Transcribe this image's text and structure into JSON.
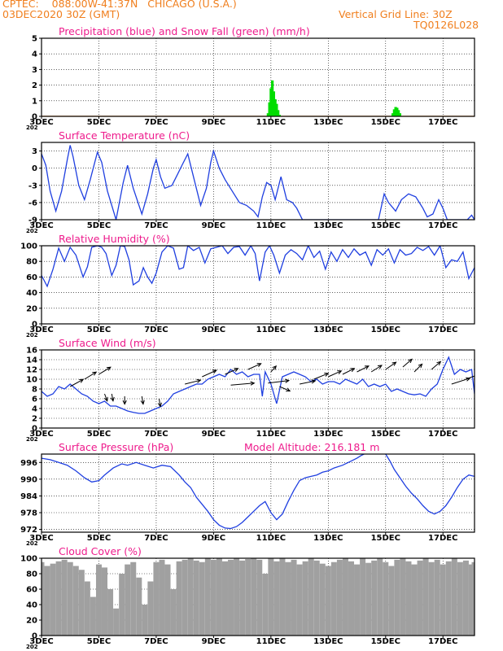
{
  "header": {
    "line1": "CPTEC:    088:00W-41:37N   CHICAGO (U.S.A.)",
    "line2": "03DEC2020 30Z (GMT)",
    "grid_line": "Vertical Grid Line: 30Z",
    "code": "TQ0126L028"
  },
  "colors": {
    "header": "#f07f1e",
    "panel_title": "#ee1b8c",
    "line": "#1f3fe0",
    "snow": "#00dd00",
    "cloud": "#a0a0a0",
    "precip_zero": "#f07f1e"
  },
  "x_axis": {
    "tick_labels": [
      "3DEC",
      "5DEC",
      "7DEC",
      "9DEC",
      "11DEC",
      "13DEC",
      "15DEC",
      "17DEC"
    ],
    "tick_days": [
      3,
      5,
      7,
      9,
      11,
      13,
      15,
      17
    ],
    "start_day": 3,
    "end_day": 18.1,
    "year_fragment": "202"
  },
  "chart_data": [
    {
      "type": "bar",
      "title": "Precipitation (blue) and Snow Fall (green) (mm/h)",
      "ylim": [
        0,
        5
      ],
      "yticks": [
        "0",
        "1",
        "2",
        "3",
        "4",
        "5"
      ],
      "series": [
        {
          "name": "Precipitation",
          "x": [
            3,
            18.1
          ],
          "values": [
            0,
            0
          ]
        },
        {
          "name": "Snow Fall",
          "x": [
            10.9,
            10.95,
            11.0,
            11.05,
            11.1,
            11.15,
            11.2,
            11.25,
            11.3,
            15.25,
            15.3,
            15.35,
            15.4,
            15.45,
            15.5
          ],
          "values": [
            0.2,
            0.9,
            1.8,
            2.3,
            1.6,
            1.1,
            0.8,
            0.4,
            0.1,
            0.2,
            0.45,
            0.6,
            0.55,
            0.4,
            0.2
          ]
        }
      ]
    },
    {
      "type": "line",
      "title": "Surface Temperature (nC)",
      "ylim": [
        -9,
        4.5
      ],
      "yticks": [
        "3",
        "0",
        "-3",
        "-6",
        "-9"
      ],
      "x": [
        3.0,
        3.15,
        3.3,
        3.5,
        3.7,
        3.9,
        4.0,
        4.1,
        4.3,
        4.5,
        4.7,
        4.95,
        5.1,
        5.3,
        5.6,
        5.85,
        6.0,
        6.2,
        6.5,
        6.7,
        6.9,
        7.0,
        7.15,
        7.3,
        7.55,
        7.75,
        7.9,
        8.1,
        8.3,
        8.55,
        8.75,
        8.9,
        9.0,
        9.2,
        9.4,
        9.65,
        9.9,
        10.15,
        10.4,
        10.55,
        10.7,
        10.85,
        11.0,
        11.15,
        11.35,
        11.55,
        11.75,
        11.9,
        12.1,
        14.75,
        14.95,
        15.1,
        15.35,
        15.55,
        15.8,
        16.05,
        16.3,
        16.45,
        16.65,
        16.85,
        17.0,
        17.15,
        17.85,
        18.0,
        18.1
      ],
      "values": [
        2.5,
        0.5,
        -4.0,
        -7.5,
        -4.0,
        1.5,
        4.0,
        2.0,
        -3.0,
        -5.5,
        -2.0,
        2.8,
        1.0,
        -4.0,
        -9.0,
        -2.5,
        0.5,
        -3.5,
        -8.0,
        -4.5,
        0.0,
        1.5,
        -1.5,
        -3.5,
        -3.0,
        -1.0,
        0.5,
        2.5,
        -1.5,
        -6.5,
        -3.5,
        1.0,
        3.0,
        0.0,
        -2.0,
        -4.0,
        -6.0,
        -6.5,
        -7.5,
        -8.5,
        -5.0,
        -2.5,
        -3.0,
        -5.5,
        -1.5,
        -5.5,
        -6.0,
        -7.0,
        -9.0,
        -9.0,
        -4.5,
        -6.0,
        -7.5,
        -5.5,
        -4.5,
        -5.0,
        -7.0,
        -8.5,
        -8.0,
        -5.5,
        -7.0,
        -9.0,
        -9.0,
        -8.2,
        -9.0
      ]
    },
    {
      "type": "line",
      "title": "Relative Humidity (%)",
      "ylim": [
        0,
        100
      ],
      "yticks": [
        "0",
        "20",
        "40",
        "60",
        "80",
        "100"
      ],
      "x": [
        3.0,
        3.2,
        3.4,
        3.6,
        3.8,
        4.0,
        4.2,
        4.45,
        4.6,
        4.75,
        4.95,
        5.1,
        5.25,
        5.45,
        5.6,
        5.75,
        5.9,
        6.05,
        6.2,
        6.4,
        6.55,
        6.7,
        6.85,
        7.0,
        7.2,
        7.4,
        7.6,
        7.8,
        7.95,
        8.1,
        8.3,
        8.5,
        8.7,
        8.9,
        9.1,
        9.3,
        9.5,
        9.7,
        9.9,
        10.1,
        10.3,
        10.45,
        10.6,
        10.8,
        10.95,
        11.1,
        11.3,
        11.5,
        11.7,
        11.9,
        12.1,
        12.3,
        12.5,
        12.7,
        12.9,
        13.1,
        13.3,
        13.5,
        13.7,
        13.9,
        14.1,
        14.3,
        14.5,
        14.7,
        14.9,
        15.1,
        15.3,
        15.5,
        15.7,
        15.9,
        16.1,
        16.3,
        16.5,
        16.7,
        16.9,
        17.1,
        17.3,
        17.5,
        17.7,
        17.9,
        18.1
      ],
      "values": [
        62,
        48,
        70,
        97,
        80,
        98,
        88,
        60,
        73,
        98,
        100,
        98,
        90,
        62,
        75,
        100,
        99,
        82,
        50,
        55,
        72,
        60,
        52,
        65,
        92,
        100,
        97,
        70,
        72,
        100,
        94,
        98,
        78,
        96,
        98,
        100,
        90,
        98,
        99,
        88,
        100,
        90,
        55,
        92,
        100,
        88,
        65,
        88,
        95,
        90,
        82,
        100,
        85,
        93,
        70,
        92,
        80,
        95,
        85,
        96,
        88,
        92,
        75,
        95,
        88,
        96,
        78,
        95,
        88,
        90,
        98,
        94,
        99,
        88,
        100,
        72,
        82,
        80,
        92,
        58,
        72
      ]
    },
    {
      "type": "line",
      "title": "Surface Wind (m/s)",
      "ylim": [
        0,
        16
      ],
      "yticks": [
        "0",
        "2",
        "4",
        "6",
        "8",
        "10",
        "12",
        "14",
        "16"
      ],
      "x": [
        3.0,
        3.2,
        3.4,
        3.6,
        3.8,
        4.0,
        4.2,
        4.4,
        4.6,
        4.8,
        5.0,
        5.2,
        5.4,
        5.6,
        5.8,
        6.0,
        6.2,
        6.4,
        6.6,
        6.8,
        7.0,
        7.2,
        7.4,
        7.6,
        7.8,
        8.0,
        8.2,
        8.4,
        8.6,
        8.8,
        9.0,
        9.2,
        9.4,
        9.6,
        9.8,
        10.0,
        10.2,
        10.4,
        10.6,
        10.7,
        10.8,
        11.0,
        11.2,
        11.4,
        11.6,
        11.8,
        12.0,
        12.2,
        12.4,
        12.6,
        12.8,
        13.0,
        13.2,
        13.4,
        13.6,
        13.8,
        14.0,
        14.2,
        14.4,
        14.6,
        14.8,
        15.0,
        15.2,
        15.4,
        15.6,
        15.8,
        16.0,
        16.2,
        16.4,
        16.6,
        16.8,
        17.0,
        17.2,
        17.4,
        17.6,
        17.8,
        18.0,
        18.1
      ],
      "values": [
        7.5,
        6.5,
        7.0,
        8.5,
        8.0,
        9.0,
        8.0,
        7.0,
        6.5,
        5.5,
        5.0,
        5.5,
        4.5,
        4.5,
        4.0,
        3.5,
        3.2,
        3.0,
        3.0,
        3.5,
        4.0,
        4.5,
        5.5,
        7.0,
        7.5,
        8.0,
        8.5,
        9.0,
        9.0,
        10.0,
        10.5,
        11.0,
        10.5,
        12.0,
        11.0,
        11.5,
        10.5,
        11.0,
        11.0,
        6.5,
        11.5,
        9.0,
        5.0,
        10.5,
        11.0,
        11.5,
        11.0,
        10.5,
        9.5,
        10.0,
        9.0,
        9.5,
        9.5,
        9.0,
        10.0,
        9.5,
        9.0,
        10.0,
        8.5,
        9.0,
        8.5,
        9.0,
        7.5,
        8.0,
        7.5,
        7.0,
        6.8,
        7.0,
        6.5,
        8.0,
        9.0,
        12.0,
        14.5,
        11.0,
        12.0,
        11.5,
        12.0,
        7.0
      ]
    },
    {
      "type": "line",
      "title": "Surface Pressure (hPa)",
      "annotation": "Model Altitude: 216.181  m",
      "ylim": [
        971,
        999
      ],
      "yticks": [
        "972",
        "978",
        "984",
        "990",
        "996"
      ],
      "x": [
        3.0,
        3.3,
        3.6,
        3.9,
        4.2,
        4.5,
        4.75,
        5.0,
        5.2,
        5.5,
        5.8,
        6.0,
        6.3,
        6.6,
        6.9,
        7.2,
        7.5,
        7.8,
        8.0,
        8.2,
        8.4,
        8.6,
        8.8,
        9.0,
        9.2,
        9.4,
        9.6,
        9.8,
        10.0,
        10.2,
        10.4,
        10.6,
        10.8,
        11.0,
        11.2,
        11.4,
        11.6,
        11.8,
        12.0,
        12.2,
        12.4,
        12.6,
        12.8,
        13.0,
        13.2,
        13.5,
        13.8,
        14.0,
        14.15,
        14.25
      ],
      "values": [
        997.5,
        997.0,
        996.0,
        995.0,
        993.0,
        990.5,
        989.0,
        989.5,
        991.5,
        994.0,
        995.5,
        995.0,
        996.0,
        995.0,
        994.0,
        995.0,
        994.5,
        991.5,
        989.0,
        987.0,
        983.5,
        981.0,
        978.5,
        975.5,
        973.5,
        972.5,
        972.3,
        973.0,
        974.5,
        976.5,
        978.5,
        980.5,
        982.0,
        978.0,
        975.5,
        977.5,
        982.0,
        986.0,
        989.5,
        990.5,
        991.0,
        991.5,
        992.5,
        993.0,
        994.0,
        995.0,
        996.5,
        997.5,
        998.5,
        999.0
      ],
      "x2": [
        15.0,
        15.15,
        15.3,
        15.5,
        15.7,
        15.9,
        16.1,
        16.3,
        16.5,
        16.7,
        16.9,
        17.1,
        17.3,
        17.5,
        17.7,
        17.9,
        18.1
      ],
      "values2": [
        999.0,
        996.5,
        993.5,
        990.5,
        987.5,
        985.0,
        983.0,
        980.5,
        978.5,
        977.5,
        978.5,
        980.5,
        983.5,
        987.0,
        990.0,
        991.5,
        991.0
      ]
    },
    {
      "type": "area",
      "title": "Cloud Cover (%)",
      "ylim": [
        0,
        100
      ],
      "yticks": [
        "0",
        "20",
        "40",
        "60",
        "80",
        "100"
      ],
      "x": [
        3.0,
        3.2,
        3.4,
        3.6,
        3.8,
        4.0,
        4.2,
        4.4,
        4.6,
        4.8,
        5.0,
        5.2,
        5.4,
        5.6,
        5.8,
        6.0,
        6.2,
        6.4,
        6.6,
        6.8,
        7.0,
        7.2,
        7.4,
        7.6,
        7.8,
        8.0,
        8.2,
        8.4,
        8.6,
        8.8,
        9.0,
        9.2,
        9.4,
        9.6,
        9.8,
        10.0,
        10.2,
        10.4,
        10.6,
        10.8,
        11.0,
        11.2,
        11.4,
        11.6,
        11.8,
        12.0,
        12.2,
        12.4,
        12.6,
        12.8,
        13.0,
        13.2,
        13.4,
        13.6,
        13.8,
        14.0,
        14.2,
        14.4,
        14.6,
        14.8,
        15.0,
        15.2,
        15.4,
        15.6,
        15.8,
        16.0,
        16.2,
        16.4,
        16.6,
        16.8,
        17.0,
        17.2,
        17.4,
        17.6,
        17.8,
        18.0,
        18.1
      ],
      "values": [
        95,
        90,
        93,
        96,
        98,
        95,
        90,
        85,
        70,
        50,
        92,
        88,
        60,
        35,
        80,
        92,
        95,
        75,
        40,
        70,
        95,
        98,
        92,
        60,
        96,
        98,
        100,
        97,
        95,
        100,
        98,
        100,
        96,
        98,
        100,
        97,
        99,
        100,
        98,
        80,
        100,
        96,
        100,
        95,
        98,
        92,
        96,
        100,
        97,
        93,
        90,
        95,
        98,
        100,
        96,
        92,
        100,
        94,
        97,
        100,
        95,
        90,
        98,
        100,
        96,
        92,
        97,
        100,
        95,
        98,
        92,
        96,
        100,
        95,
        97,
        92,
        95
      ]
    }
  ]
}
